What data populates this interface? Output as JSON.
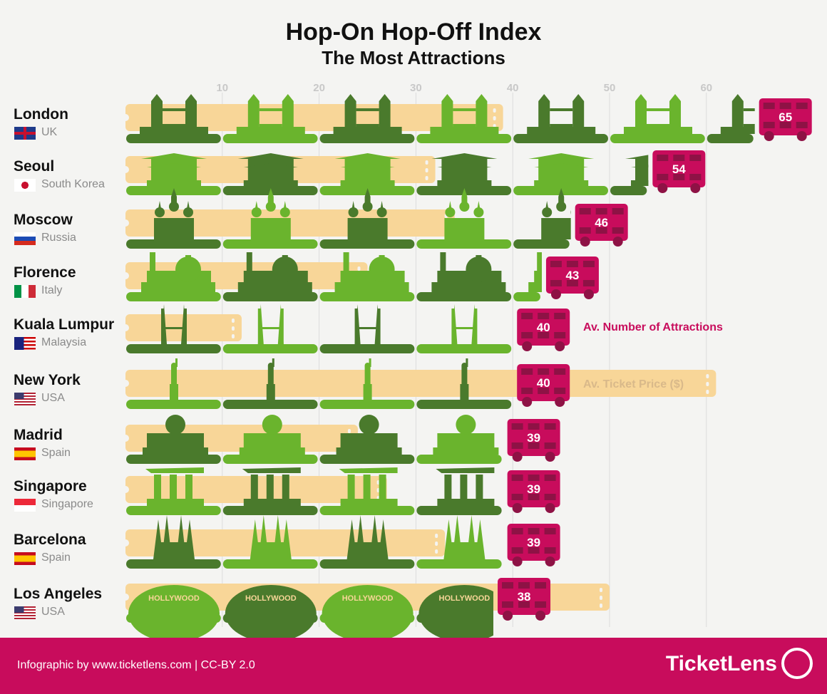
{
  "chart_data": {
    "type": "bar",
    "title": "Hop-On Hop-Off Index",
    "subtitle": "The Most Attractions",
    "x_ticks": [
      10,
      20,
      30,
      40,
      50,
      60
    ],
    "xlim": [
      0,
      65
    ],
    "grid": true,
    "categories": [
      "London",
      "Seoul",
      "Moscow",
      "Florence",
      "Kuala Lumpur",
      "New York",
      "Madrid",
      "Singapore",
      "Barcelona",
      "Los Angeles"
    ],
    "countries": [
      "UK",
      "South Korea",
      "Russia",
      "Italy",
      "Malaysia",
      "USA",
      "Spain",
      "Singapore",
      "Spain",
      "USA"
    ],
    "landmarks": [
      "bridge",
      "palace",
      "kremlin",
      "duomo",
      "petronas",
      "liberty",
      "gate",
      "mbs",
      "sagrada",
      "hollywood"
    ],
    "series": [
      {
        "name": "Av. Number of Attractions",
        "values": [
          65,
          54,
          46,
          43,
          40,
          40,
          39,
          39,
          39,
          38
        ],
        "color": "#c80c5c"
      },
      {
        "name": "Av. Ticket Price ($)",
        "values": [
          39,
          32,
          34,
          25,
          12,
          61,
          24,
          27,
          33,
          50
        ],
        "color": "#f8d698"
      }
    ],
    "hollywood_sign": "HOLLYWOOD"
  },
  "colors": {
    "dark_green": "#4a7a2c",
    "light_green": "#6ab42d",
    "ticket": "#f8d698",
    "bus": "#c80c5c",
    "bus_window": "#8e1245"
  },
  "footer": {
    "credit": "Infographic by www.ticketlens.com | CC-BY 2.0",
    "logo": "TicketLens"
  }
}
